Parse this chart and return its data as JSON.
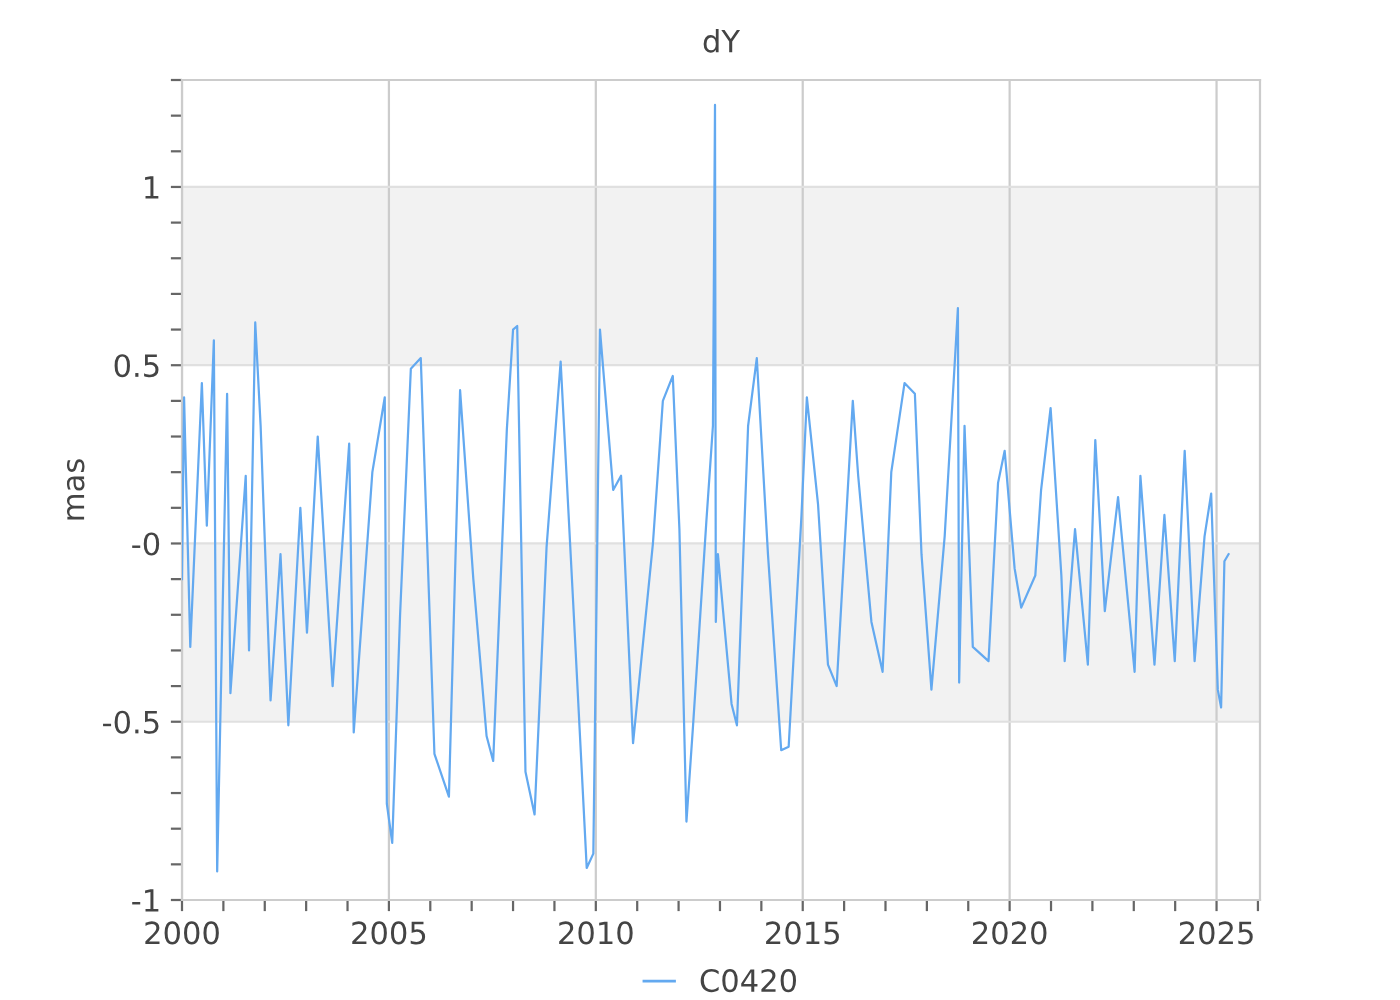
{
  "chart_data": {
    "type": "line",
    "title": "dY",
    "ylabel": "mas",
    "series": [
      {
        "name": "C0420",
        "color": "#63a9f0",
        "x": [
          2000.0,
          2000.05,
          2000.2,
          2000.48,
          2000.6,
          2000.77,
          2000.85,
          2001.09,
          2001.17,
          2001.54,
          2001.62,
          2001.77,
          2001.9,
          2002.14,
          2002.38,
          2002.57,
          2002.86,
          2003.02,
          2003.28,
          2003.64,
          2004.04,
          2004.15,
          2004.6,
          2004.9,
          2004.95,
          2005.08,
          2005.27,
          2005.53,
          2005.77,
          2006.1,
          2006.45,
          2006.72,
          2007.04,
          2007.36,
          2007.52,
          2007.85,
          2008.0,
          2008.1,
          2008.3,
          2008.52,
          2008.81,
          2009.15,
          2009.45,
          2009.78,
          2009.94,
          2010.1,
          2010.42,
          2010.61,
          2010.9,
          2011.38,
          2011.62,
          2011.86,
          2012.02,
          2012.19,
          2012.35,
          2012.67,
          2012.83,
          2012.88,
          2012.9,
          2012.95,
          2013.28,
          2013.41,
          2013.68,
          2013.89,
          2014.16,
          2014.48,
          2014.66,
          2014.97,
          2015.1,
          2015.37,
          2015.61,
          2015.82,
          2016.21,
          2016.34,
          2016.66,
          2016.93,
          2017.14,
          2017.46,
          2017.71,
          2017.87,
          2018.11,
          2018.43,
          2018.75,
          2018.78,
          2018.91,
          2019.11,
          2019.49,
          2019.72,
          2019.88,
          2020.12,
          2020.28,
          2020.62,
          2020.76,
          2020.99,
          2021.25,
          2021.33,
          2021.58,
          2021.89,
          2022.07,
          2022.3,
          2022.62,
          2023.02,
          2023.16,
          2023.5,
          2023.74,
          2023.99,
          2024.23,
          2024.47,
          2024.71,
          2024.87,
          2025.03,
          2025.11,
          2025.19,
          2025.29
        ],
        "values": [
          -0.1,
          0.41,
          -0.29,
          0.45,
          0.05,
          0.57,
          -0.92,
          0.42,
          -0.42,
          0.19,
          -0.3,
          0.62,
          0.33,
          -0.44,
          -0.03,
          -0.51,
          0.1,
          -0.25,
          0.3,
          -0.4,
          0.28,
          -0.53,
          0.2,
          0.41,
          -0.73,
          -0.84,
          -0.2,
          0.49,
          0.52,
          -0.59,
          -0.71,
          0.43,
          -0.1,
          -0.54,
          -0.61,
          0.32,
          0.6,
          0.61,
          -0.64,
          -0.76,
          -0.01,
          0.51,
          -0.16,
          -0.91,
          -0.87,
          0.6,
          0.15,
          0.19,
          -0.56,
          0.0,
          0.4,
          0.47,
          0.04,
          -0.78,
          -0.51,
          0.06,
          0.33,
          1.23,
          -0.22,
          -0.03,
          -0.45,
          -0.51,
          0.33,
          0.52,
          -0.03,
          -0.58,
          -0.57,
          0.08,
          0.41,
          0.11,
          -0.34,
          -0.4,
          0.4,
          0.19,
          -0.22,
          -0.36,
          0.2,
          0.45,
          0.42,
          -0.03,
          -0.41,
          0.02,
          0.66,
          -0.39,
          0.33,
          -0.29,
          -0.33,
          0.17,
          0.26,
          -0.07,
          -0.18,
          -0.09,
          0.15,
          0.38,
          -0.09,
          -0.33,
          0.04,
          -0.34,
          0.29,
          -0.19,
          0.13,
          -0.36,
          0.19,
          -0.34,
          0.08,
          -0.33,
          0.26,
          -0.33,
          0.02,
          0.14,
          -0.41,
          -0.46,
          -0.05,
          -0.03
        ]
      }
    ],
    "xlim": [
      2000,
      2026.05
    ],
    "ylim": [
      -1,
      1.3
    ],
    "xticks": [
      2000,
      {
        "value": 2001,
        "label": null
      },
      {
        "value": 2002,
        "label": null
      },
      {
        "value": 2003,
        "label": null
      },
      {
        "value": 2004,
        "label": null
      },
      2005,
      {
        "value": 2006,
        "label": null
      },
      {
        "value": 2007,
        "label": null
      },
      {
        "value": 2008,
        "label": null
      },
      {
        "value": 2009,
        "label": null
      },
      2010,
      {
        "value": 2011,
        "label": null
      },
      {
        "value": 2012,
        "label": null
      },
      {
        "value": 2013,
        "label": null
      },
      {
        "value": 2014,
        "label": null
      },
      2015,
      {
        "value": 2016,
        "label": null
      },
      {
        "value": 2017,
        "label": null
      },
      {
        "value": 2018,
        "label": null
      },
      {
        "value": 2019,
        "label": null
      },
      2020,
      {
        "value": 2021,
        "label": null
      },
      {
        "value": 2022,
        "label": null
      },
      {
        "value": 2023,
        "label": null
      },
      {
        "value": 2024,
        "label": null
      },
      2025,
      {
        "value": 2026,
        "label": null
      }
    ],
    "yticks": [
      -1,
      {
        "value": -0.9,
        "label": null
      },
      {
        "value": -0.8,
        "label": null
      },
      {
        "value": -0.7,
        "label": null
      },
      {
        "value": -0.6,
        "label": null
      },
      -0.5,
      {
        "value": -0.4,
        "label": null
      },
      {
        "value": -0.3,
        "label": null
      },
      {
        "value": -0.2,
        "label": null
      },
      {
        "value": -0.1,
        "label": null
      },
      {
        "value": 0,
        "label": "-0"
      },
      {
        "value": 0.1,
        "label": null
      },
      {
        "value": 0.2,
        "label": null
      },
      {
        "value": 0.3,
        "label": null
      },
      {
        "value": 0.4,
        "label": null
      },
      0.5,
      {
        "value": 0.6,
        "label": null
      },
      {
        "value": 0.7,
        "label": null
      },
      {
        "value": 0.8,
        "label": null
      },
      {
        "value": 0.9,
        "label": null
      },
      1,
      {
        "value": 1.1,
        "label": null
      },
      {
        "value": 1.2,
        "label": null
      },
      {
        "value": 1.3,
        "label": null
      }
    ],
    "bands": [
      {
        "axis": "y",
        "from": 0.5,
        "to": 1,
        "color": "#f2f2f2"
      },
      {
        "axis": "y",
        "from": -0.5,
        "to": 0,
        "color": "#f2f2f2"
      }
    ],
    "grid": true,
    "legend": "bottom",
    "marker": "none",
    "line_style": "solid"
  }
}
